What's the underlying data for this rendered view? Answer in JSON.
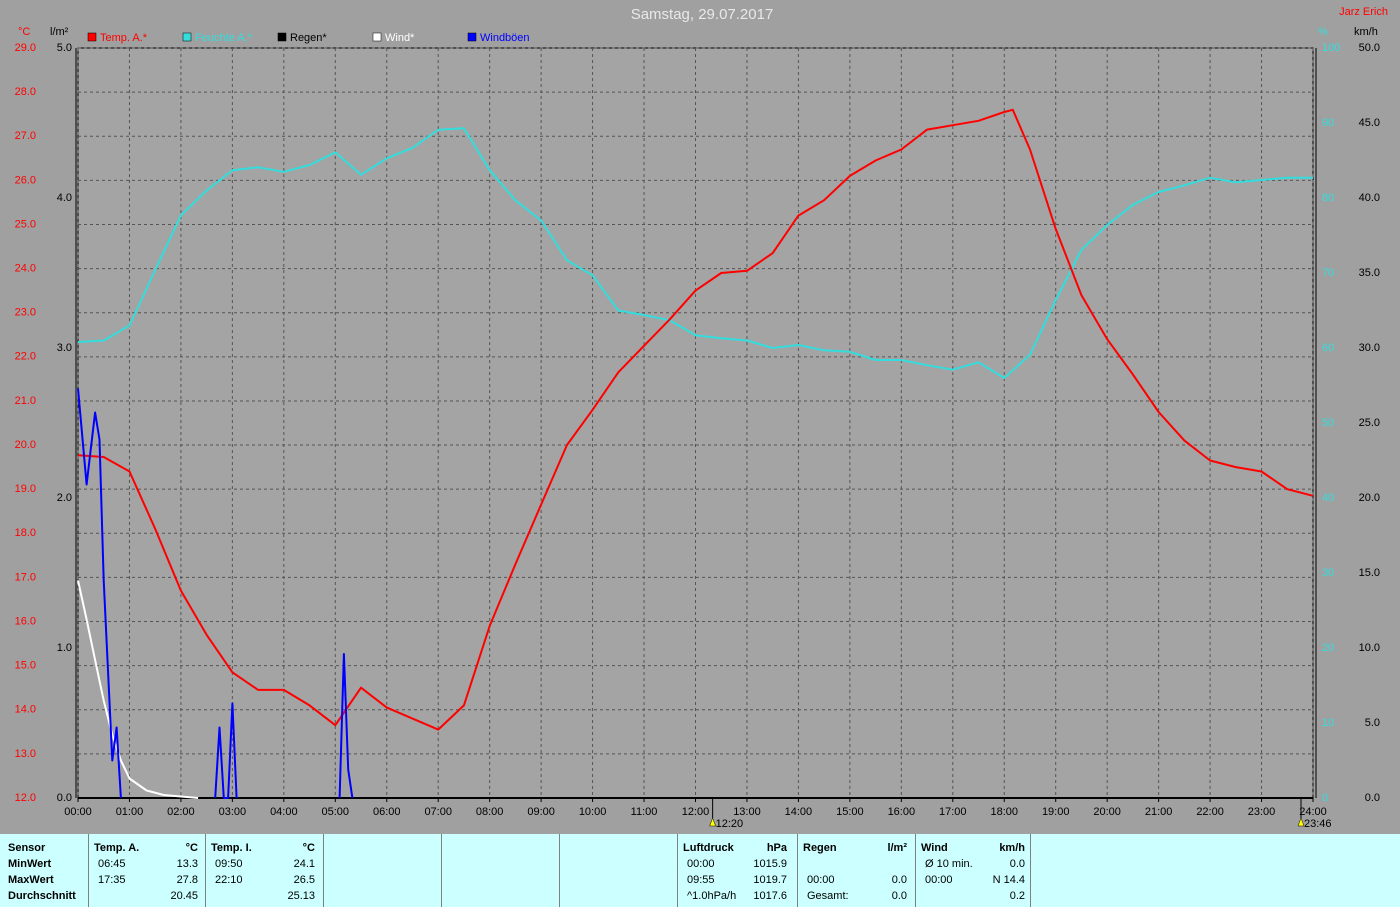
{
  "chart_data": {
    "type": "line",
    "title": "Samstag, 29.07.2017",
    "author": "Jarz Erich",
    "y_label": "°C",
    "y2_label": "km/h",
    "y3_label": "l/m²",
    "y4_label": "%",
    "xlim": [
      0,
      24
    ],
    "xticks": [
      {
        "value": 0,
        "label": "00:00"
      },
      {
        "value": 1,
        "label": "01:00"
      },
      {
        "value": 2,
        "label": "02:00"
      },
      {
        "value": 3,
        "label": "03:00"
      },
      {
        "value": 4,
        "label": "04:00"
      },
      {
        "value": 5,
        "label": "05:00"
      },
      {
        "value": 6,
        "label": "06:00"
      },
      {
        "value": 7,
        "label": "07:00"
      },
      {
        "value": 8,
        "label": "08:00"
      },
      {
        "value": 9,
        "label": "09:00"
      },
      {
        "value": 10,
        "label": "10:00"
      },
      {
        "value": 11,
        "label": "11:00"
      },
      {
        "value": 12,
        "label": "12:00"
      },
      {
        "value": 13,
        "label": "13:00"
      },
      {
        "value": 14,
        "label": "14:00"
      },
      {
        "value": 15,
        "label": "15:00"
      },
      {
        "value": 16,
        "label": "16:00"
      },
      {
        "value": 17,
        "label": "17:00"
      },
      {
        "value": 18,
        "label": "18:00"
      },
      {
        "value": 19,
        "label": "19:00"
      },
      {
        "value": 20,
        "label": "20:00"
      },
      {
        "value": 21,
        "label": "21:00"
      },
      {
        "value": 22,
        "label": "22:00"
      },
      {
        "value": 23,
        "label": "23:00"
      },
      {
        "value": 24,
        "label": "24:00"
      }
    ],
    "ylim": [
      12,
      29
    ],
    "yticks": [
      {
        "value": 12,
        "label": "12.0"
      },
      {
        "value": 13,
        "label": "13.0"
      },
      {
        "value": 14,
        "label": "14.0"
      },
      {
        "value": 15,
        "label": "15.0"
      },
      {
        "value": 16,
        "label": "16.0"
      },
      {
        "value": 17,
        "label": "17.0"
      },
      {
        "value": 18,
        "label": "18.0"
      },
      {
        "value": 19,
        "label": "19.0"
      },
      {
        "value": 20,
        "label": "20.0"
      },
      {
        "value": 21,
        "label": "21.0"
      },
      {
        "value": 22,
        "label": "22.0"
      },
      {
        "value": 23,
        "label": "23.0"
      },
      {
        "value": 24,
        "label": "24.0"
      },
      {
        "value": 25,
        "label": "25.0"
      },
      {
        "value": 26,
        "label": "26.0"
      },
      {
        "value": 27,
        "label": "27.0"
      },
      {
        "value": 28,
        "label": "28.0"
      },
      {
        "value": 29,
        "label": "29.0"
      }
    ],
    "y2lim": [
      0,
      50
    ],
    "y2ticks": [
      {
        "value": 0,
        "label": "0.0"
      },
      {
        "value": 5,
        "label": "5.0"
      },
      {
        "value": 10,
        "label": "10.0"
      },
      {
        "value": 15,
        "label": "15.0"
      },
      {
        "value": 20,
        "label": "20.0"
      },
      {
        "value": 25,
        "label": "25.0"
      },
      {
        "value": 30,
        "label": "30.0"
      },
      {
        "value": 35,
        "label": "35.0"
      },
      {
        "value": 40,
        "label": "40.0"
      },
      {
        "value": 45,
        "label": "45.0"
      },
      {
        "value": 50,
        "label": "50.0"
      }
    ],
    "y3lim": [
      0,
      5
    ],
    "y3ticks": [
      {
        "value": 0,
        "label": "0.0"
      },
      {
        "value": 1,
        "label": "1.0"
      },
      {
        "value": 2,
        "label": "2.0"
      },
      {
        "value": 3,
        "label": "3.0"
      },
      {
        "value": 4,
        "label": "4.0"
      },
      {
        "value": 5,
        "label": "5.0"
      }
    ],
    "y4lim": [
      0,
      100
    ],
    "y4ticks": [
      0,
      10,
      20,
      30,
      40,
      50,
      60,
      70,
      80,
      90,
      100
    ],
    "grid": true,
    "series": [
      {
        "name": "Temp. A.*",
        "color": "#ff0000",
        "axis": "y",
        "x": [
          0,
          0.5,
          1,
          1.5,
          2,
          2.5,
          3,
          3.5,
          4,
          4.5,
          5,
          5.5,
          6,
          6.5,
          7,
          7.5,
          8,
          8.5,
          9,
          9.5,
          10,
          10.5,
          11,
          11.5,
          12,
          12.5,
          13,
          13.5,
          14,
          14.5,
          15,
          15.5,
          16,
          16.5,
          17,
          17.5,
          18,
          18.167,
          18.5,
          19,
          19.5,
          20,
          20.5,
          21,
          21.5,
          22,
          22.5,
          23,
          23.5,
          24
        ],
        "values": [
          19.77,
          19.73,
          19.4,
          18.1,
          16.7,
          15.7,
          14.85,
          14.45,
          14.45,
          14.1,
          13.65,
          14.5,
          14.05,
          13.8,
          13.55,
          14.1,
          15.9,
          17.3,
          18.65,
          20.0,
          20.8,
          21.65,
          22.25,
          22.85,
          23.5,
          23.9,
          23.95,
          24.35,
          25.2,
          25.55,
          26.1,
          26.45,
          26.7,
          27.15,
          27.25,
          27.35,
          27.55,
          27.6,
          26.7,
          24.9,
          23.4,
          22.4,
          21.6,
          20.75,
          20.1,
          19.65,
          19.5,
          19.4,
          19.0,
          18.85
        ]
      },
      {
        "name": "Feuchte A.*",
        "color": "#33dddd",
        "axis": "y4",
        "x": [
          0,
          0.5,
          1,
          1.5,
          2,
          2.5,
          3,
          3.5,
          4,
          4.5,
          5,
          5.5,
          6,
          6.5,
          7,
          7.5,
          8,
          8.5,
          9,
          9.5,
          10,
          10.5,
          11,
          11.5,
          12,
          12.5,
          13,
          13.5,
          14,
          14.5,
          15,
          15.5,
          16,
          16.5,
          17,
          17.5,
          18,
          18.5,
          19,
          19.5,
          20,
          20.5,
          21,
          21.5,
          22,
          22.5,
          23,
          23.5,
          24
        ],
        "values": [
          60.8,
          61,
          63,
          70.4,
          77.7,
          81,
          83.7,
          84.1,
          83.5,
          84.4,
          86.1,
          83.1,
          85.3,
          86.7,
          89.1,
          89.3,
          83.7,
          79.7,
          77,
          71.7,
          69.7,
          65,
          64.4,
          63.7,
          61.7,
          61.3,
          61,
          60,
          60.4,
          59.7,
          59.5,
          58.4,
          58.4,
          57.7,
          57.1,
          58.1,
          56,
          59.1,
          66.4,
          73.1,
          76.4,
          79.1,
          80.8,
          81.7,
          82.7,
          82.1,
          82.4,
          82.7,
          82.7
        ]
      },
      {
        "name": "Regen*",
        "color": "#000000",
        "axis": "y3",
        "x": [
          0,
          24
        ],
        "values": [
          0,
          0
        ]
      },
      {
        "name": "Wind*",
        "color": "#ffffff",
        "axis": "y2",
        "x": [
          0,
          0.167,
          0.333,
          0.5,
          0.667,
          0.833,
          1,
          1.333,
          1.667,
          2,
          2.333
        ],
        "values": [
          14.5,
          11.9,
          9.2,
          6.5,
          4.2,
          2.5,
          1.3,
          0.5,
          0.2,
          0.1,
          0
        ]
      },
      {
        "name": "Windböen",
        "color": "#0000ff",
        "axis": "y2",
        "x": [
          0,
          0.167,
          0.333,
          0.417,
          0.5,
          0.667,
          0.75,
          0.833,
          1.5,
          2.667,
          2.75,
          2.833,
          2.917,
          3.0,
          3.083,
          4.5,
          5.083,
          5.167,
          5.25,
          5.333
        ],
        "values": [
          27.3,
          20.9,
          25.7,
          23.9,
          14.5,
          2.5,
          4.7,
          0,
          null,
          0,
          4.7,
          0,
          0,
          6.3,
          0,
          null,
          0,
          9.6,
          1.9,
          0
        ]
      }
    ],
    "annotations": [
      {
        "value": 12.333,
        "label": "12:20"
      },
      {
        "value": 23.767,
        "label": "23:46"
      }
    ]
  },
  "stats": {
    "row_labels": [
      "Sensor",
      "MinWert",
      "MaxWert",
      "Durchschnitt"
    ],
    "groups": [
      {
        "title": "Temp. A.",
        "unit": "°C",
        "rows": [
          [
            "06:45",
            "13.3"
          ],
          [
            "17:35",
            "27.8"
          ],
          [
            null,
            "20.45"
          ]
        ]
      },
      {
        "title": "Temp. I.",
        "unit": "°C",
        "rows": [
          [
            "09:50",
            "24.1"
          ],
          [
            "22:10",
            "26.5"
          ],
          [
            null,
            "25.13"
          ]
        ]
      },
      {
        "title": "Luftdruck",
        "unit": "hPa",
        "rows": [
          [
            "00:00",
            "1015.9"
          ],
          [
            "09:55",
            "1019.7"
          ],
          [
            "^1.0hPa/h",
            "1017.6"
          ]
        ]
      },
      {
        "title": "Regen",
        "unit": "l/m²",
        "rows": [
          [
            null,
            null
          ],
          [
            "00:00",
            "0.0"
          ],
          [
            "Gesamt:",
            "0.0"
          ]
        ]
      },
      {
        "title": "Wind",
        "unit": "km/h",
        "rows": [
          [
            "Ø 10 min.",
            "0.0"
          ],
          [
            "00:00",
            "N 14.4"
          ],
          [
            null,
            "0.2"
          ]
        ]
      }
    ]
  }
}
